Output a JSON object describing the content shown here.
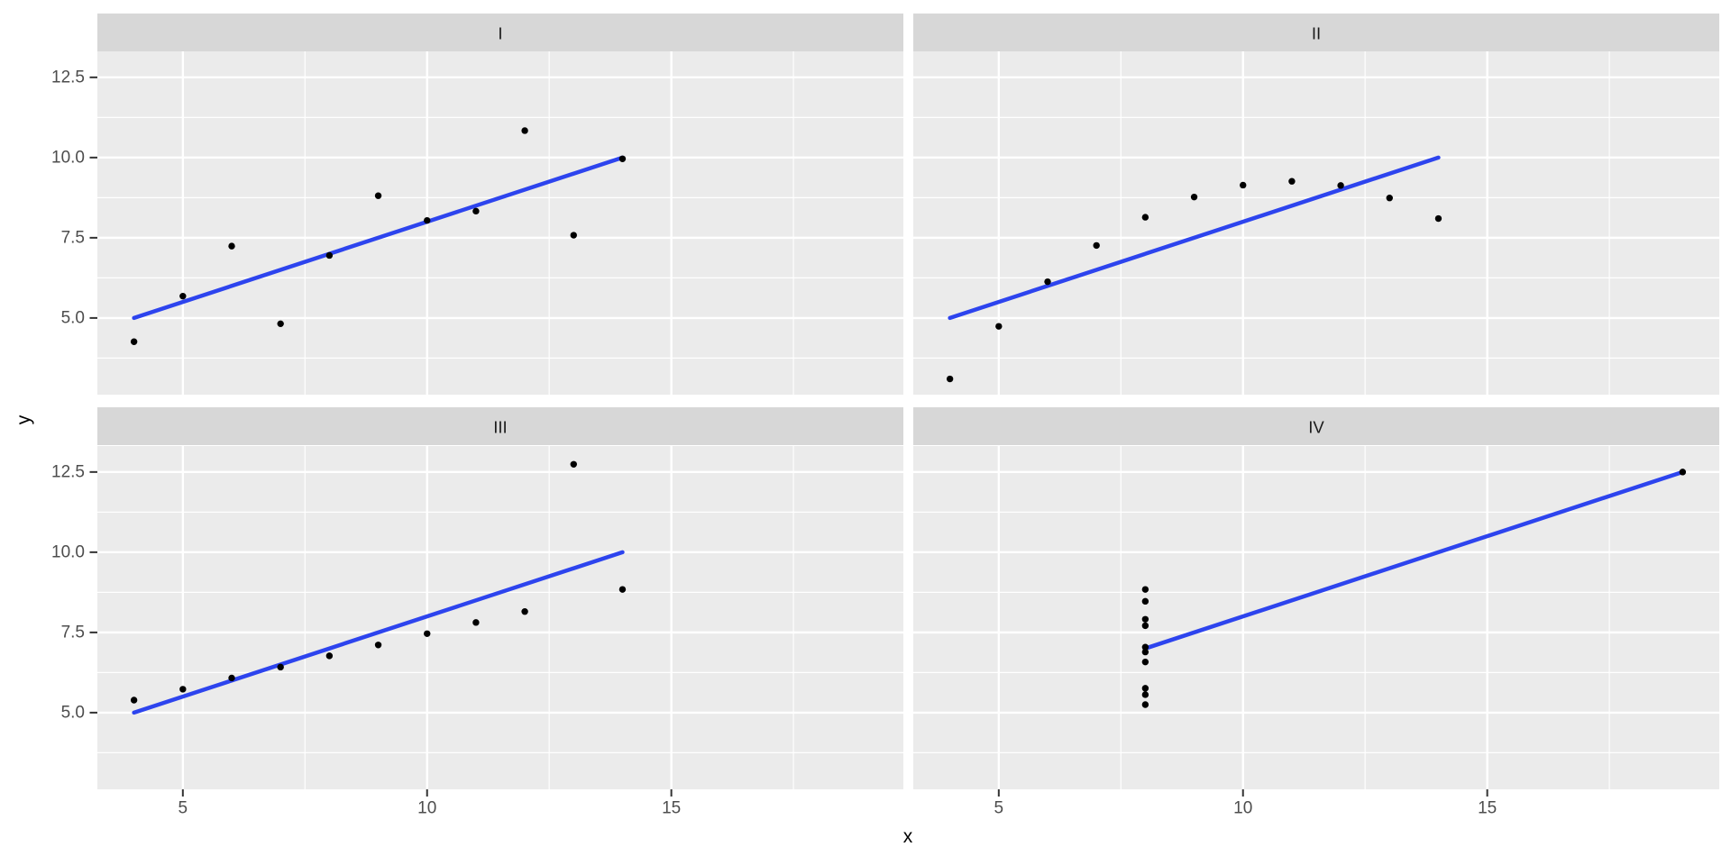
{
  "figure": {
    "x_axis_title": "x",
    "y_axis_title": "y"
  },
  "chart_data": {
    "type": "scatter",
    "title": "",
    "xlabel": "x",
    "ylabel": "y",
    "facet_layout": "2x2",
    "xlim": [
      3.25,
      19.75
    ],
    "ylim": [
      2.61,
      13.31
    ],
    "x_ticks": [
      5,
      10,
      15
    ],
    "y_ticks": [
      12.5,
      10.0,
      7.5,
      5.0
    ],
    "x_minor_gridlines": [
      7.5,
      12.5,
      17.5
    ],
    "y_minor_gridlines": [
      3.75,
      6.25,
      8.75,
      11.25
    ],
    "grid": true,
    "legend": "none",
    "facets": [
      {
        "label": "I",
        "points_x": [
          10,
          8,
          13,
          9,
          11,
          14,
          6,
          4,
          12,
          7,
          5
        ],
        "points_y": [
          8.04,
          6.95,
          7.58,
          8.81,
          8.33,
          9.96,
          7.24,
          4.26,
          10.84,
          4.82,
          5.68
        ],
        "regression_line": {
          "x1": 4,
          "y1": 5.0,
          "x2": 14,
          "y2": 10.0
        }
      },
      {
        "label": "II",
        "points_x": [
          10,
          8,
          13,
          9,
          11,
          14,
          6,
          4,
          12,
          7,
          5
        ],
        "points_y": [
          9.14,
          8.14,
          8.74,
          8.77,
          9.26,
          8.1,
          6.13,
          3.1,
          9.13,
          7.26,
          4.74
        ],
        "regression_line": {
          "x1": 4,
          "y1": 5.0,
          "x2": 14,
          "y2": 10.0
        }
      },
      {
        "label": "III",
        "points_x": [
          10,
          8,
          13,
          9,
          11,
          14,
          6,
          4,
          12,
          7,
          5
        ],
        "points_y": [
          7.46,
          6.77,
          12.74,
          7.11,
          7.81,
          8.84,
          6.08,
          5.39,
          8.15,
          6.42,
          5.73
        ],
        "regression_line": {
          "x1": 4,
          "y1": 5.0,
          "x2": 14,
          "y2": 10.0
        }
      },
      {
        "label": "IV",
        "points_x": [
          8,
          8,
          8,
          8,
          8,
          8,
          8,
          19,
          8,
          8,
          8
        ],
        "points_y": [
          6.58,
          5.76,
          7.71,
          8.84,
          8.47,
          7.04,
          5.25,
          12.5,
          5.56,
          7.91,
          6.89
        ],
        "regression_line": {
          "x1": 8,
          "y1": 7.0,
          "x2": 19,
          "y2": 12.5
        }
      }
    ],
    "colors": {
      "point": "#000000",
      "regression_line": "#2D44EE",
      "panel_background": "#EBEBEB",
      "strip_background": "#D7D7D7",
      "gridline": "#FFFFFF",
      "tick_mark": "#333333",
      "tick_text": "#4D4D4D",
      "strip_text": "#1A1A1A",
      "axis_title_text": "#000000",
      "figure_background": "#FFFFFF"
    }
  }
}
